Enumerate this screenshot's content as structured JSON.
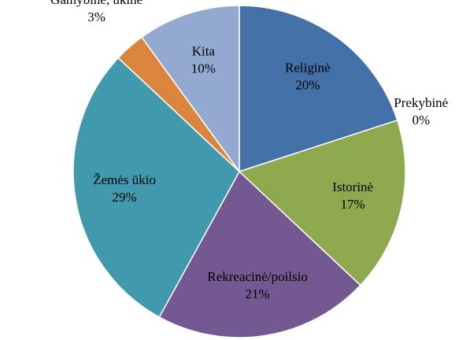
{
  "chart_data": {
    "type": "pie",
    "categories": [
      "Religinė",
      "Prekybinė",
      "Istorinė",
      "Rekreacinė/poilsio",
      "Žemės ūkio",
      "Gamybinė, ūkinė",
      "Kita"
    ],
    "values": [
      20,
      0,
      17,
      21,
      29,
      3,
      10
    ],
    "value_labels": [
      "20%",
      "0%",
      "17%",
      "21%",
      "29%",
      "3%",
      "10%"
    ],
    "colors": [
      "#4470a8",
      "#c0504d",
      "#8ea84e",
      "#735891",
      "#4199ae",
      "#db843d",
      "#93a9d0"
    ]
  }
}
